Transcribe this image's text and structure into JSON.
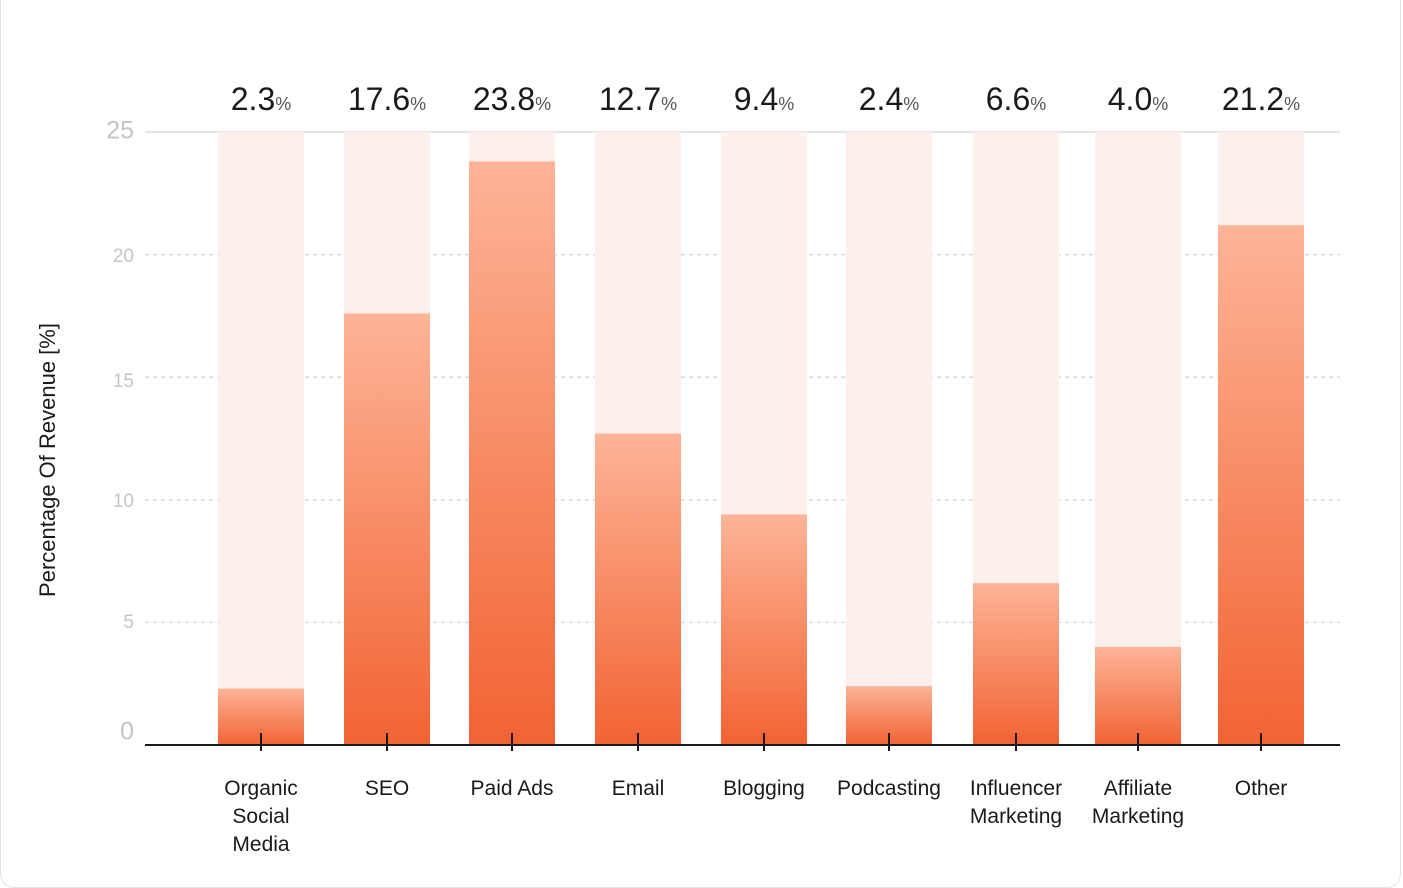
{
  "chart_data": {
    "type": "bar",
    "title": "",
    "xlabel": "",
    "ylabel": "Percentage Of Revenue [%]",
    "ylim": [
      0,
      25
    ],
    "yticks": [
      "0",
      "5",
      "10",
      "15",
      "20",
      "25"
    ],
    "grid": true,
    "categories": [
      [
        "Organic",
        "Social",
        "Media"
      ],
      [
        "SEO"
      ],
      [
        "Paid Ads"
      ],
      [
        "Email"
      ],
      [
        "Blogging"
      ],
      [
        "Podcasting"
      ],
      [
        "Influencer",
        "Marketing"
      ],
      [
        "Affiliate",
        "Marketing"
      ],
      [
        "Other"
      ]
    ],
    "values": [
      2.3,
      17.6,
      23.8,
      12.7,
      9.4,
      2.4,
      6.6,
      4.0,
      21.2
    ],
    "value_labels": [
      "2.3",
      "17.6",
      "23.8",
      "12.7",
      "9.4",
      "2.4",
      "6.6",
      "4.0",
      "21.2"
    ],
    "value_suffix": "%",
    "colors": {
      "bar_top": "#fdb497",
      "bar_bottom": "#f26333",
      "bar_track": "#fdefeb",
      "axis": "#1a1a1a",
      "grid": "#d6d6d6",
      "tick_text": "#c4c4c4",
      "label_text": "#1a1a1a"
    }
  }
}
